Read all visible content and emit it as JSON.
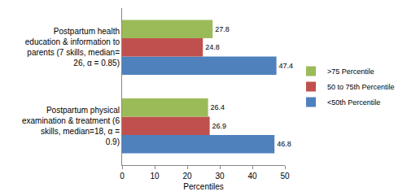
{
  "chart_data": {
    "type": "bar",
    "orientation": "horizontal",
    "x_label": "Percentiles",
    "categories": [
      "Postpartum physical examination & treatment (6 skills, median=18, α = 0.9)",
      "Postpartum health education & information to parents (7 skills, median= 26, α = 0.85)"
    ],
    "series": [
      {
        "name": "<50th Percentile",
        "color": "#4f81bd",
        "values": [
          46.8,
          47.4
        ]
      },
      {
        "name": "50 to 75th Percentile",
        "color": "#c0504d",
        "values": [
          26.9,
          24.8
        ]
      },
      {
        "name": ">75 Percentile",
        "color": "#9bbb59",
        "values": [
          26.4,
          27.8
        ]
      }
    ],
    "xlim": [
      0,
      50
    ],
    "xticks": [
      0,
      10,
      20,
      30,
      40,
      50
    ],
    "grid": false,
    "legend": "right",
    "data_labels": true
  }
}
